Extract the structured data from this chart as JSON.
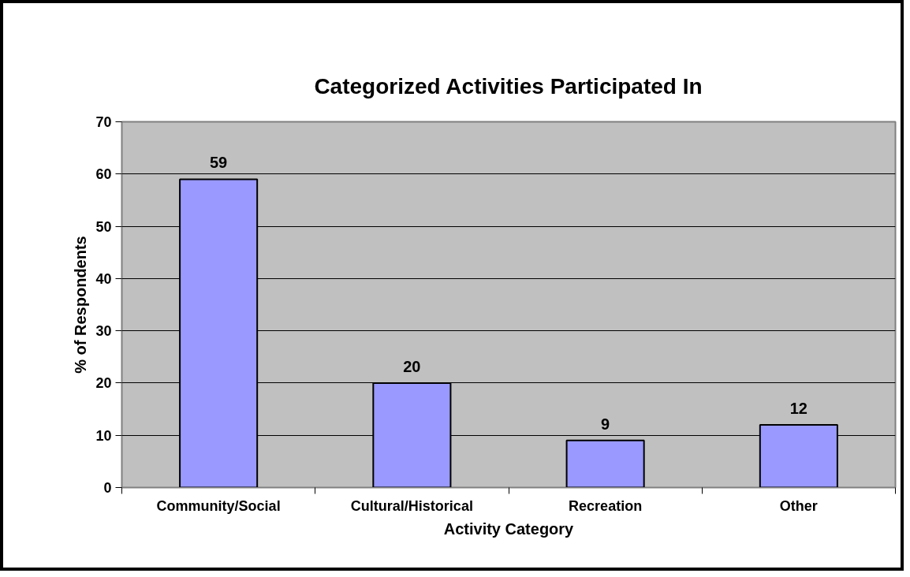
{
  "chart_data": {
    "type": "bar",
    "title": "Categorized Activities Participated In",
    "xlabel": "Activity Category",
    "ylabel": "% of Respondents",
    "categories": [
      "Community/Social",
      "Cultural/Historical",
      "Recreation",
      "Other"
    ],
    "values": [
      59,
      20,
      9,
      12
    ],
    "color": "#9999ff",
    "ylim": [
      0,
      70
    ],
    "yticks": [
      0,
      10,
      20,
      30,
      40,
      50,
      60,
      70
    ],
    "grid": "y",
    "data_labels": true
  }
}
